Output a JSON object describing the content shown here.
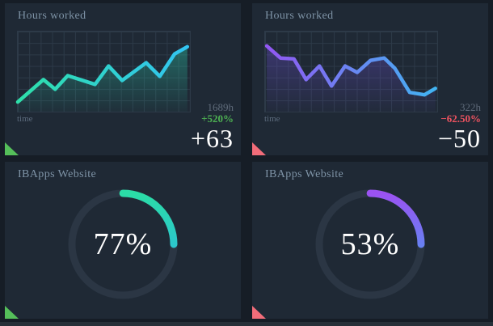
{
  "colors": {
    "page_background": "#161d26",
    "panel_background": "#1f2935",
    "grid_line": "#2d3a48",
    "title_text": "#7e93a6",
    "muted_text": "#5f6b7a",
    "positive": "#4db052",
    "negative": "#ef5360",
    "handle_positive": "#55bf5a",
    "handle_negative": "#f26d7a",
    "donut_track": "#2b3644"
  },
  "chart_data": [
    {
      "type": "line",
      "title": "Hours worked",
      "xlabel": "time",
      "ylim": [
        0,
        100
      ],
      "grid": true,
      "x_pct": [
        0,
        14.9,
        21.7,
        29,
        44.9,
        52.7,
        60.6,
        74.6,
        82.5,
        91.1,
        98.5
      ],
      "values": [
        12,
        40,
        28,
        45,
        34,
        57,
        39,
        61,
        44,
        72,
        81
      ],
      "line_colors": [
        "#2edfa9",
        "#32c4f2"
      ],
      "fill_color": "#2bd0b0",
      "total": "1689h",
      "change": "+520%",
      "delta": "+63",
      "trend": "up"
    },
    {
      "type": "line",
      "title": "Hours worked",
      "xlabel": "time",
      "ylim": [
        0,
        100
      ],
      "grid": true,
      "x_pct": [
        1,
        8.9,
        16.7,
        23.8,
        31.6,
        38.6,
        46.5,
        53.5,
        61.3,
        69.2,
        75.4,
        84,
        92.6,
        98.9
      ],
      "values": [
        82,
        67,
        66,
        40,
        57,
        32,
        57,
        49,
        64,
        67,
        54,
        24,
        21,
        29
      ],
      "line_colors": [
        "#9257f2",
        "#41b4f2"
      ],
      "fill_color": "#6b4fd0",
      "total": "322h",
      "change": "−62.50%",
      "delta": "−50",
      "trend": "down"
    },
    {
      "type": "donut",
      "title": "IBApps Website",
      "percent": 77,
      "label": "77%",
      "colors": [
        "#2bdca6",
        "#2cb3f0"
      ],
      "track": "#2b3644",
      "trend": "up"
    },
    {
      "type": "donut",
      "title": "IBApps Website",
      "percent": 53,
      "label": "53%",
      "colors": [
        "#9b52f2",
        "#38acf2"
      ],
      "track": "#2b3644",
      "trend": "down"
    }
  ]
}
